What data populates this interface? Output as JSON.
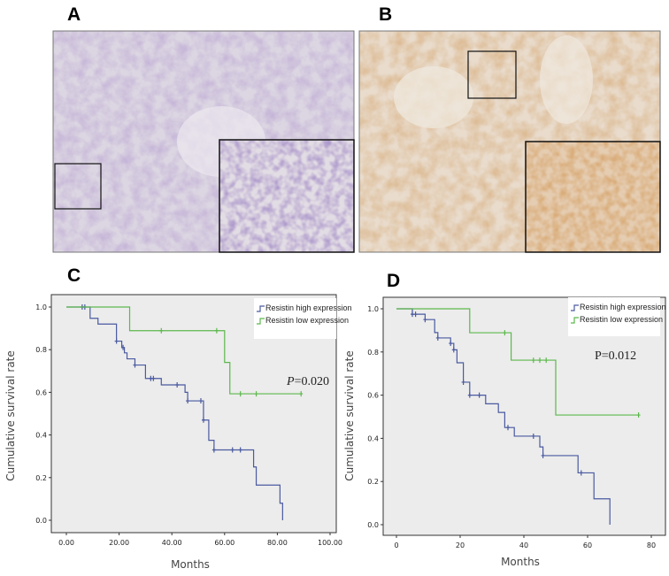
{
  "panels": {
    "A": {
      "label": "A"
    },
    "B": {
      "label": "B"
    },
    "C": {
      "label": "C"
    },
    "D": {
      "label": "D"
    }
  },
  "colors": {
    "high": "#4a5aa0",
    "low": "#5cb84c",
    "plot_bg": "#ececec",
    "stain_A": "#b6aacb",
    "stain_B": "#c9a27a"
  },
  "chart_data": [
    {
      "panel": "C",
      "type": "line",
      "step": true,
      "xlabel": "Months",
      "ylabel": "Cumulative survival rate",
      "xlim": [
        0,
        100
      ],
      "ylim": [
        0,
        1
      ],
      "xticks": [
        "0.00",
        "20.00",
        "40.00",
        "60.00",
        "80.00",
        "100.00"
      ],
      "xtick_values": [
        0,
        20,
        40,
        60,
        80,
        100
      ],
      "yticks": [
        "0.0",
        "0.2",
        "0.4",
        "0.6",
        "0.8",
        "1.0"
      ],
      "ytick_values": [
        0,
        0.2,
        0.4,
        0.6,
        0.8,
        1.0
      ],
      "legend_position": "top-right",
      "annotation": {
        "italic": "P",
        "rest": "=0.020"
      },
      "series": [
        {
          "name": "Resistin high expression",
          "color_key": "high",
          "steps": [
            [
              0,
              1.0
            ],
            [
              9,
              0.947
            ],
            [
              12,
              0.92
            ],
            [
              19,
              0.84
            ],
            [
              21,
              0.81
            ],
            [
              22,
              0.785
            ],
            [
              23,
              0.757
            ],
            [
              26,
              0.728
            ],
            [
              30,
              0.665
            ],
            [
              36,
              0.635
            ],
            [
              45,
              0.6
            ],
            [
              46,
              0.56
            ],
            [
              52,
              0.47
            ],
            [
              54,
              0.375
            ],
            [
              56,
              0.33
            ],
            [
              71,
              0.25
            ],
            [
              72,
              0.165
            ],
            [
              81,
              0.08
            ],
            [
              82,
              0.0
            ]
          ],
          "end": 82,
          "censored": [
            [
              6,
              1.0
            ],
            [
              7,
              1.0
            ],
            [
              19,
              0.84
            ],
            [
              21.5,
              0.81
            ],
            [
              26,
              0.728
            ],
            [
              32,
              0.665
            ],
            [
              33,
              0.665
            ],
            [
              42,
              0.635
            ],
            [
              46,
              0.56
            ],
            [
              51,
              0.56
            ],
            [
              52,
              0.47
            ],
            [
              56,
              0.33
            ],
            [
              63,
              0.33
            ],
            [
              66,
              0.33
            ]
          ]
        },
        {
          "name": "Resistin low expression",
          "color_key": "low",
          "steps": [
            [
              0,
              1.0
            ],
            [
              24,
              0.889
            ],
            [
              60,
              0.74
            ],
            [
              62,
              0.593
            ]
          ],
          "end": 89,
          "censored": [
            [
              36,
              0.889
            ],
            [
              57,
              0.889
            ],
            [
              66,
              0.593
            ],
            [
              72,
              0.593
            ],
            [
              89,
              0.593
            ]
          ]
        }
      ]
    },
    {
      "panel": "D",
      "type": "line",
      "step": true,
      "xlabel": "Months",
      "ylabel": "Cumulative survival rate",
      "xlim": [
        0,
        80
      ],
      "ylim": [
        0,
        1
      ],
      "xticks": [
        "0",
        "20",
        "40",
        "60",
        "80"
      ],
      "xtick_values": [
        0,
        20,
        40,
        60,
        80
      ],
      "yticks": [
        "0.0",
        "0.2",
        "0.4",
        "0.6",
        "0.8",
        "1.0"
      ],
      "ytick_values": [
        0,
        0.2,
        0.4,
        0.6,
        0.8,
        1.0
      ],
      "legend_position": "top-right",
      "annotation": {
        "italic": "",
        "rest": "P=0.012"
      },
      "series": [
        {
          "name": "Resistin high expression",
          "color_key": "high",
          "steps": [
            [
              0,
              1.0
            ],
            [
              5,
              0.975
            ],
            [
              9,
              0.95
            ],
            [
              12,
              0.89
            ],
            [
              13,
              0.865
            ],
            [
              17,
              0.84
            ],
            [
              18,
              0.81
            ],
            [
              19,
              0.75
            ],
            [
              21,
              0.66
            ],
            [
              23,
              0.6
            ],
            [
              28,
              0.56
            ],
            [
              32,
              0.52
            ],
            [
              34,
              0.45
            ],
            [
              37,
              0.41
            ],
            [
              45,
              0.36
            ],
            [
              46,
              0.32
            ],
            [
              57,
              0.24
            ],
            [
              62,
              0.12
            ],
            [
              67,
              0.0
            ]
          ],
          "end": 67,
          "censored": [
            [
              5,
              0.975
            ],
            [
              6,
              0.975
            ],
            [
              9,
              0.95
            ],
            [
              13,
              0.865
            ],
            [
              17,
              0.84
            ],
            [
              18,
              0.81
            ],
            [
              21,
              0.66
            ],
            [
              23,
              0.6
            ],
            [
              26,
              0.6
            ],
            [
              35,
              0.45
            ],
            [
              43,
              0.41
            ],
            [
              46,
              0.32
            ],
            [
              58,
              0.24
            ]
          ]
        },
        {
          "name": "Resistin low expression",
          "color_key": "low",
          "steps": [
            [
              0,
              1.0
            ],
            [
              23,
              0.889
            ],
            [
              36,
              0.762
            ],
            [
              50,
              0.508
            ]
          ],
          "end": 76,
          "censored": [
            [
              34,
              0.889
            ],
            [
              43,
              0.762
            ],
            [
              45,
              0.762
            ],
            [
              47,
              0.762
            ],
            [
              76,
              0.508
            ]
          ]
        }
      ]
    }
  ]
}
